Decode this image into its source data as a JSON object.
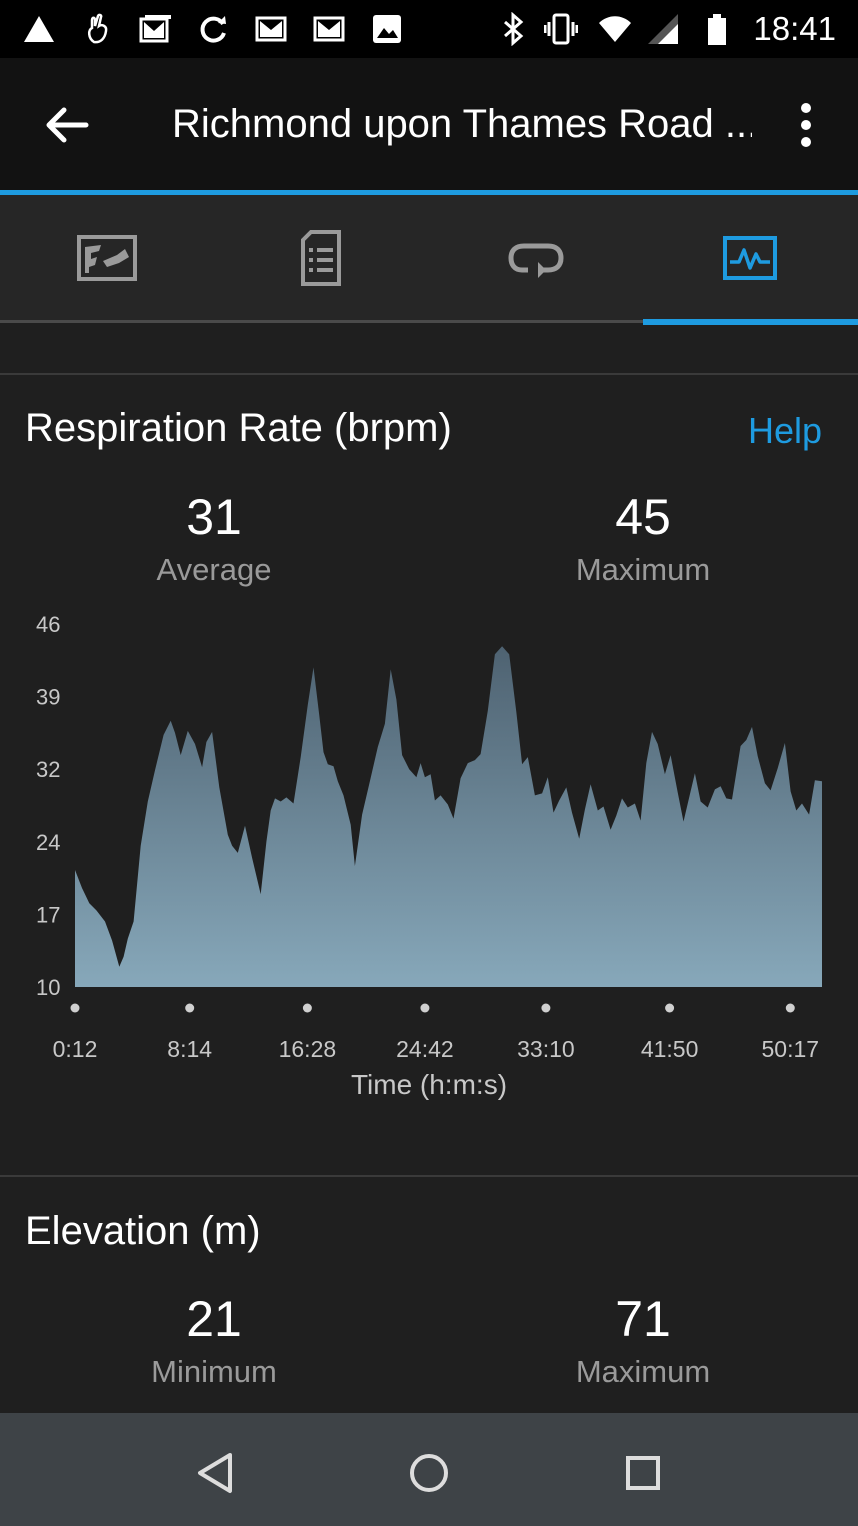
{
  "status_bar": {
    "time": "18:41",
    "left_icons": [
      "alert-triangle-icon",
      "lottery-hand-icon",
      "gmail-multi-icon",
      "sync-icon",
      "gmail-icon",
      "gmail-icon",
      "image-icon"
    ],
    "right_icons": [
      "bluetooth-icon",
      "vibrate-icon",
      "wifi-icon",
      "signal-icon",
      "battery-icon"
    ]
  },
  "app_bar": {
    "title": "Richmond upon Thames Road ...",
    "back_icon": "arrow-left-icon",
    "menu_icon": "more-vert-icon"
  },
  "tabs": [
    {
      "icon": "map-icon",
      "active": false
    },
    {
      "icon": "details-icon",
      "active": false
    },
    {
      "icon": "laps-icon",
      "active": false
    },
    {
      "icon": "charts-icon",
      "active": true
    }
  ],
  "colors": {
    "accent": "#1e9be0",
    "fill_top": "#4e6271",
    "fill_bottom": "#87a8ba"
  },
  "respiration": {
    "title": "Respiration Rate (brpm)",
    "help": "Help",
    "stats": [
      {
        "value": "31",
        "label": "Average"
      },
      {
        "value": "45",
        "label": "Maximum"
      }
    ],
    "xlabel": "Time (h:m:s)"
  },
  "elevation": {
    "title": "Elevation (m)",
    "stats": [
      {
        "value": "21",
        "label": "Minimum"
      },
      {
        "value": "71",
        "label": "Maximum"
      }
    ]
  },
  "chart_data": {
    "type": "area",
    "title": "Respiration Rate (brpm)",
    "xlabel": "Time (h:m:s)",
    "ylabel": "",
    "y_ticks": [
      "46",
      "39",
      "32",
      "24",
      "17",
      "10"
    ],
    "ylim": [
      10,
      46
    ],
    "x_ticks": [
      "0:12",
      "8:14",
      "16:28",
      "24:42",
      "33:10",
      "41:50",
      "50:17"
    ],
    "x_tick_minutes": [
      0.2,
      8.23,
      16.47,
      24.7,
      33.17,
      41.83,
      50.28
    ],
    "x_range_minutes": [
      0.2,
      52.5
    ],
    "series": [
      {
        "x_minutes": [
          0.2,
          0.7,
          1.2,
          1.7,
          2.3,
          2.8,
          3.3,
          3.6,
          3.9,
          4.3,
          4.8,
          5.3,
          5.8,
          6.4,
          6.9,
          7.2,
          7.6,
          8.1,
          8.6,
          9.1,
          9.4,
          9.8,
          10.3,
          10.9,
          11.2,
          11.6,
          12.1,
          12.6,
          13.2,
          13.6,
          13.9,
          14.2,
          14.6,
          15.0,
          15.5,
          16.0,
          16.5,
          16.9,
          17.3,
          17.6,
          17.9,
          18.3,
          18.6,
          19.0,
          19.5,
          19.8,
          20.3,
          20.8,
          21.4,
          21.9,
          22.3,
          22.7,
          23.1,
          23.6,
          24.1,
          24.4,
          24.7,
          25.1,
          25.4,
          25.8,
          26.3,
          26.7,
          27.2,
          27.7,
          28.2,
          28.6,
          29.1,
          29.6,
          30.1,
          30.6,
          31.1,
          31.5,
          31.9,
          32.4,
          32.9,
          33.3,
          33.7,
          34.1,
          34.6,
          35.0,
          35.5,
          35.9,
          36.3,
          36.8,
          37.2,
          37.7,
          38.1,
          38.5,
          38.9,
          39.4,
          39.8,
          40.2,
          40.6,
          41.0,
          41.5,
          41.9,
          42.4,
          42.8,
          43.3,
          43.6,
          44.0,
          44.5,
          45.0,
          45.4,
          45.8,
          46.2,
          46.8,
          47.2,
          47.6,
          48.0,
          48.5,
          48.9,
          49.4,
          49.9,
          50.3,
          50.7,
          51.1,
          51.6,
          52.0,
          52.5
        ],
        "y": [
          21.6,
          19.8,
          18.3,
          17.6,
          16.5,
          14.6,
          12.0,
          13.0,
          14.8,
          16.5,
          24.0,
          28.4,
          31.5,
          35.0,
          36.4,
          35.2,
          33.0,
          35.4,
          34.1,
          31.8,
          34.3,
          35.3,
          29.8,
          25.1,
          24.0,
          23.3,
          26.0,
          22.8,
          19.2,
          24.4,
          27.5,
          28.7,
          28.4,
          28.8,
          28.2,
          32.8,
          38.0,
          41.7,
          37.0,
          33.3,
          32.1,
          31.9,
          30.4,
          29.0,
          26.1,
          22.0,
          27.1,
          30.1,
          33.8,
          36.1,
          41.5,
          38.5,
          33.0,
          31.6,
          30.8,
          32.2,
          30.8,
          31.1,
          28.5,
          29.0,
          28.1,
          26.7,
          30.7,
          32.2,
          32.5,
          33.1,
          37.4,
          43.0,
          43.8,
          43.0,
          37.3,
          32.1,
          32.8,
          29.0,
          29.2,
          30.8,
          27.3,
          28.5,
          29.8,
          27.3,
          24.7,
          27.6,
          30.1,
          27.5,
          27.9,
          25.6,
          27.0,
          28.7,
          27.8,
          28.2,
          26.5,
          32.2,
          35.3,
          34.1,
          31.1,
          33.0,
          29.3,
          26.4,
          29.4,
          31.2,
          28.4,
          27.8,
          29.6,
          29.9,
          28.7,
          28.6,
          33.9,
          34.5,
          35.8,
          32.9,
          30.2,
          29.5,
          31.7,
          34.2,
          29.4,
          27.5,
          28.2,
          27.1,
          30.5,
          30.4
        ]
      }
    ]
  }
}
